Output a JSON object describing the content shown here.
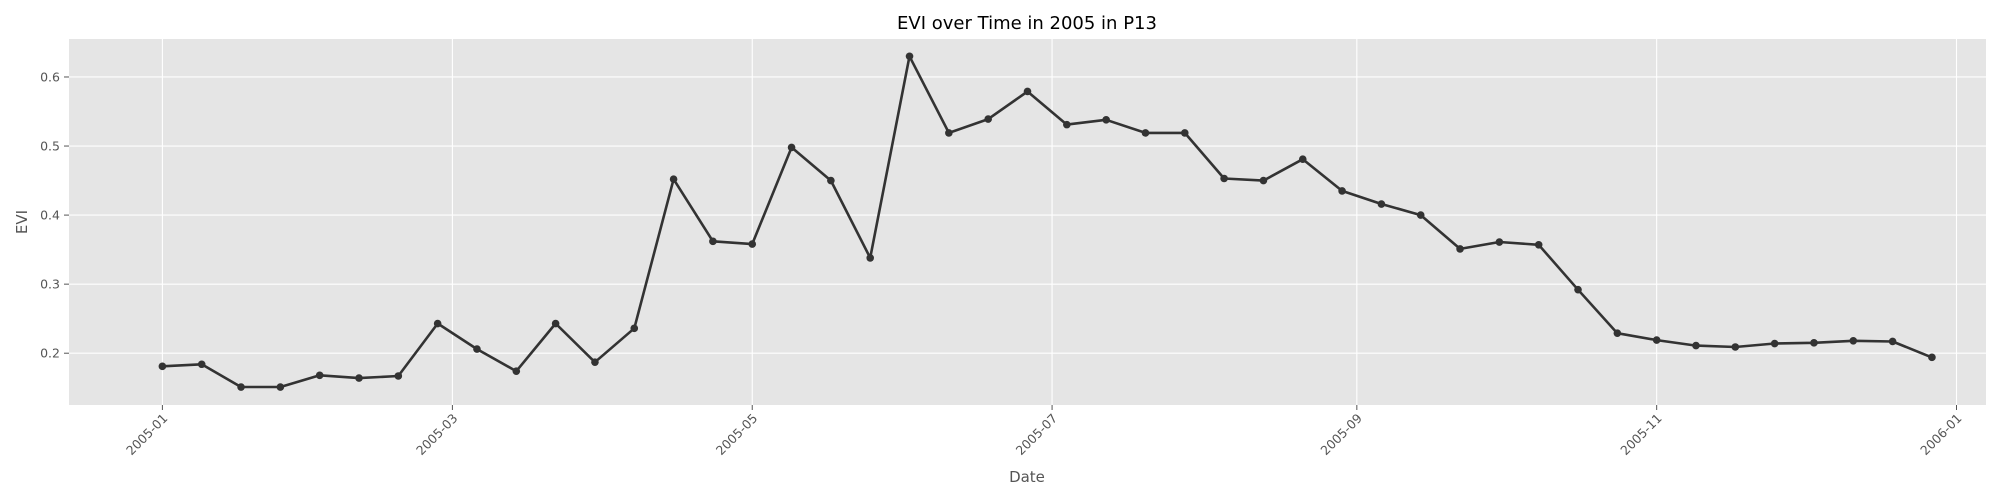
{
  "chart_data": {
    "type": "line",
    "title": "EVI over Time in 2005 in P13",
    "xlabel": "Date",
    "ylabel": "EVI",
    "x_axis_type": "date",
    "xlim": [
      "2004-12-13",
      "2006-01-07"
    ],
    "ylim": [
      0.125,
      0.655
    ],
    "x_ticks": [
      "2005-01-01",
      "2005-03-01",
      "2005-05-01",
      "2005-07-01",
      "2005-09-01",
      "2005-11-01",
      "2006-01-01"
    ],
    "x_tick_labels": [
      "2005-01",
      "2005-03",
      "2005-05",
      "2005-07",
      "2005-09",
      "2005-11",
      "2006-01"
    ],
    "y_ticks": [
      0.2,
      0.3,
      0.4,
      0.5,
      0.6
    ],
    "y_tick_labels": [
      "0.2",
      "0.3",
      "0.4",
      "0.5",
      "0.6"
    ],
    "grid": true,
    "background": "#e5e5e5",
    "series": [
      {
        "color": "#333333",
        "marker": "circle",
        "x": [
          "2005-01-01",
          "2005-01-09",
          "2005-01-17",
          "2005-01-25",
          "2005-02-02",
          "2005-02-10",
          "2005-02-18",
          "2005-02-26",
          "2005-03-06",
          "2005-03-14",
          "2005-03-22",
          "2005-03-30",
          "2005-04-07",
          "2005-04-15",
          "2005-04-23",
          "2005-05-01",
          "2005-05-09",
          "2005-05-17",
          "2005-05-25",
          "2005-06-02",
          "2005-06-10",
          "2005-06-18",
          "2005-06-26",
          "2005-07-04",
          "2005-07-12",
          "2005-07-20",
          "2005-07-28",
          "2005-08-05",
          "2005-08-13",
          "2005-08-21",
          "2005-08-29",
          "2005-09-06",
          "2005-09-14",
          "2005-09-22",
          "2005-09-30",
          "2005-10-08",
          "2005-10-16",
          "2005-10-24",
          "2005-11-01",
          "2005-11-09",
          "2005-11-17",
          "2005-11-25",
          "2005-12-03",
          "2005-12-11",
          "2005-12-19",
          "2005-12-27"
        ],
        "y": [
          0.181,
          0.184,
          0.151,
          0.151,
          0.168,
          0.164,
          0.167,
          0.243,
          0.206,
          0.174,
          0.243,
          0.187,
          0.236,
          0.452,
          0.362,
          0.358,
          0.498,
          0.45,
          0.338,
          0.63,
          0.519,
          0.539,
          0.579,
          0.531,
          0.538,
          0.519,
          0.519,
          0.453,
          0.45,
          0.481,
          0.435,
          0.416,
          0.4,
          0.351,
          0.361,
          0.357,
          0.292,
          0.229,
          0.219,
          0.211,
          0.209,
          0.214,
          0.215,
          0.218,
          0.217,
          0.194
        ]
      }
    ]
  }
}
